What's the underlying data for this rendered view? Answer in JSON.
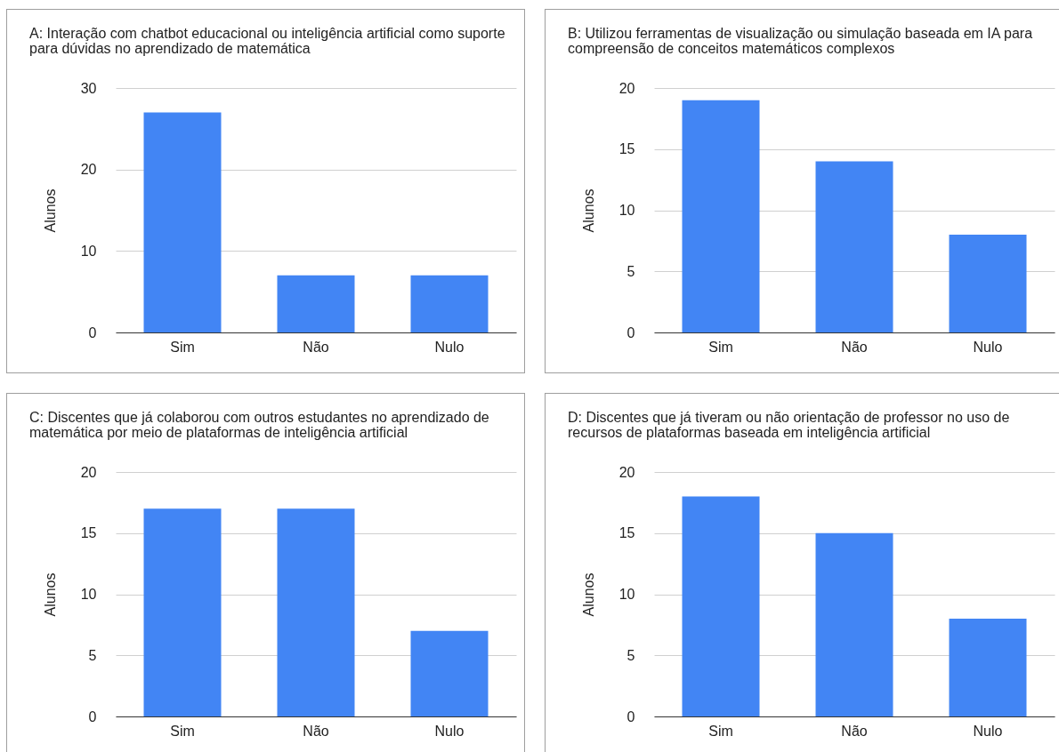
{
  "chart_data": [
    {
      "type": "bar",
      "title": "A: Interação com chatbot educacional ou inteligência artificial como suporte para dúvidas no aprendizado de matemática",
      "ylabel": "Alunos",
      "categories": [
        "Sim",
        "Não",
        "Nulo"
      ],
      "values": [
        27,
        7,
        7
      ],
      "color": "#4285f4",
      "ylim": [
        0,
        30
      ],
      "yticks": [
        0,
        10,
        20,
        30
      ],
      "grid": "y"
    },
    {
      "type": "bar",
      "title": "B: Utilizou ferramentas de visualização ou simulação baseada em IA para compreensão de conceitos matemáticos complexos",
      "ylabel": "Alunos",
      "categories": [
        "Sim",
        "Não",
        "Nulo"
      ],
      "values": [
        19,
        14,
        8
      ],
      "color": "#4285f4",
      "ylim": [
        0,
        20
      ],
      "yticks": [
        0,
        5,
        10,
        15,
        20
      ],
      "grid": "y"
    },
    {
      "type": "bar",
      "title": "C: Discentes que já colaborou com outros estudantes no aprendizado de matemática por meio de plataformas de inteligência artificial",
      "ylabel": "Alunos",
      "categories": [
        "Sim",
        "Não",
        "Nulo"
      ],
      "values": [
        17,
        17,
        7
      ],
      "color": "#4285f4",
      "ylim": [
        0,
        20
      ],
      "yticks": [
        0,
        5,
        10,
        15,
        20
      ],
      "grid": "y"
    },
    {
      "type": "bar",
      "title": "D: Discentes que já tiveram ou não orientação de professor no uso de recursos de plataformas baseada em inteligência artificial",
      "ylabel": "Alunos",
      "categories": [
        "Sim",
        "Não",
        "Nulo"
      ],
      "values": [
        18,
        15,
        8
      ],
      "color": "#4285f4",
      "ylim": [
        0,
        20
      ],
      "yticks": [
        0,
        5,
        10,
        15,
        20
      ],
      "grid": "y"
    }
  ]
}
